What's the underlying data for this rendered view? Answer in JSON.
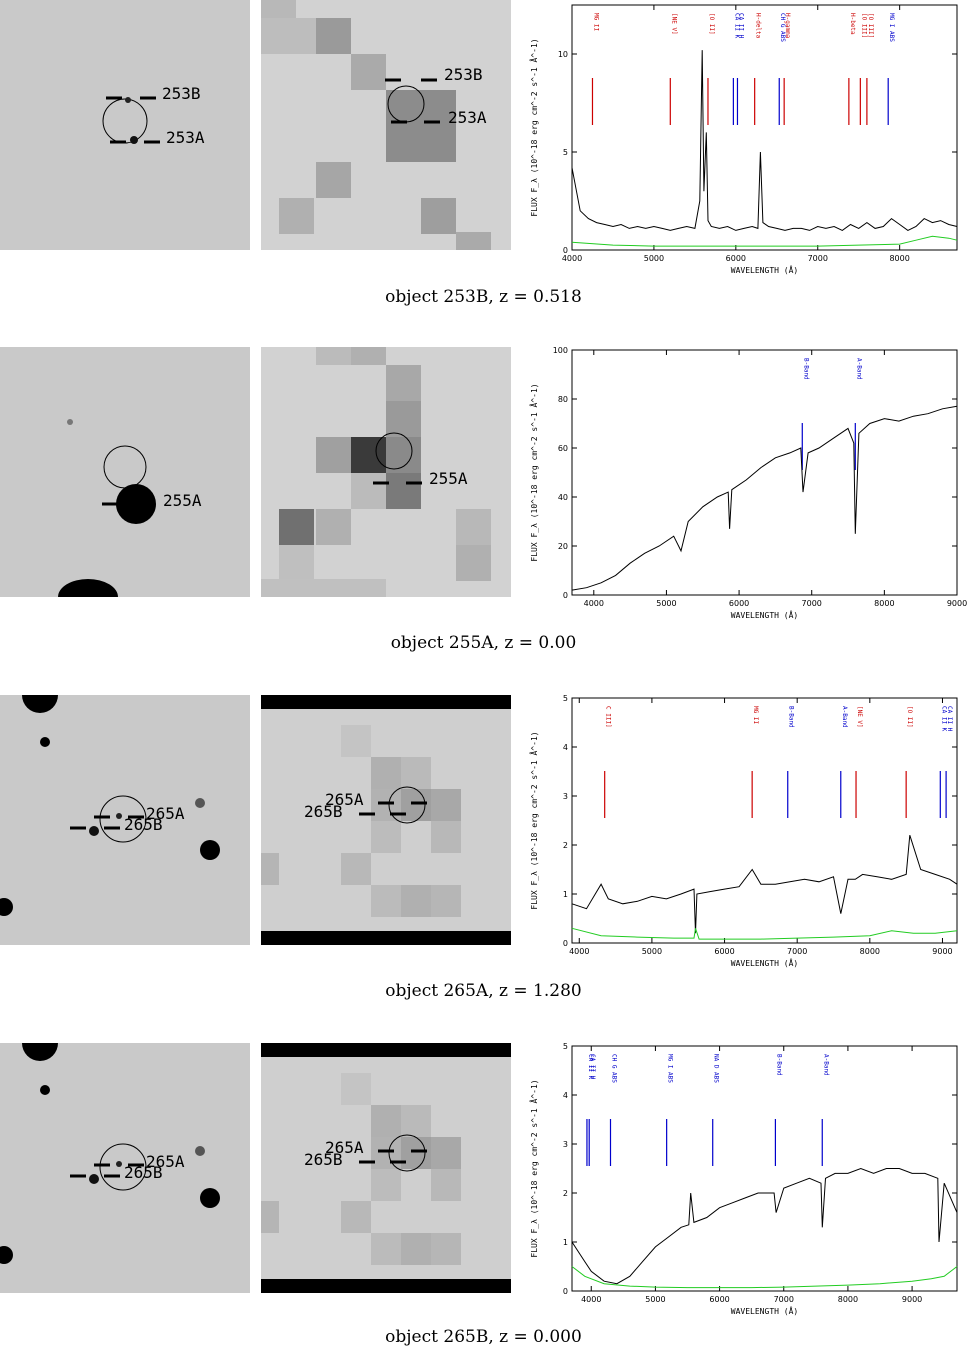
{
  "panels": [
    {
      "caption": "object 253B, z = 0.518",
      "optical_labels": [
        "253B",
        "253A"
      ],
      "xray_labels": [
        "253B",
        "253A"
      ],
      "chart_data": {
        "type": "line",
        "xlabel": "WAVELENGTH (Å)",
        "ylabel": "FLUX F_λ (10^-18 erg cm^-2 s^-1 Å^-1)",
        "xlim": [
          4000,
          8700
        ],
        "ylim": [
          0,
          12.5
        ],
        "xticks": [
          4000,
          5000,
          6000,
          7000,
          8000
        ],
        "yticks": [
          0,
          5,
          10
        ],
        "lines": [
          {
            "name": "MG II",
            "x": 4250,
            "color": "#cc0000"
          },
          {
            "name": "[NE V]",
            "x": 5200,
            "color": "#cc0000"
          },
          {
            "name": "[O II]",
            "x": 5660,
            "color": "#cc0000"
          },
          {
            "name": "CA II K",
            "x": 5970,
            "color": "#0000cc"
          },
          {
            "name": "CA II H",
            "x": 6020,
            "color": "#0000cc"
          },
          {
            "name": "H-delta",
            "x": 6230,
            "color": "#cc0000"
          },
          {
            "name": "CH G ABS",
            "x": 6530,
            "color": "#0000cc"
          },
          {
            "name": "H-gamma",
            "x": 6590,
            "color": "#cc0000"
          },
          {
            "name": "H-beta",
            "x": 7380,
            "color": "#cc0000"
          },
          {
            "name": "[O III]",
            "x": 7520,
            "color": "#cc0000"
          },
          {
            "name": "[O III]",
            "x": 7600,
            "color": "#cc0000"
          },
          {
            "name": "MG I ABS",
            "x": 7860,
            "color": "#0000cc"
          }
        ],
        "series": [
          {
            "name": "spectrum",
            "color": "#000000",
            "x": [
              4000,
              4100,
              4200,
              4300,
              4400,
              4500,
              4600,
              4700,
              4800,
              4900,
              5000,
              5100,
              5200,
              5300,
              5400,
              5500,
              5560,
              5590,
              5610,
              5640,
              5660,
              5700,
              5800,
              5900,
              6000,
              6100,
              6200,
              6270,
              6300,
              6330,
              6400,
              6500,
              6600,
              6700,
              6800,
              6900,
              7000,
              7100,
              7200,
              7300,
              7400,
              7500,
              7600,
              7700,
              7800,
              7900,
              8000,
              8100,
              8200,
              8300,
              8400,
              8500,
              8600,
              8700
            ],
            "y": [
              4.2,
              2.0,
              1.6,
              1.4,
              1.3,
              1.2,
              1.3,
              1.1,
              1.2,
              1.1,
              1.2,
              1.1,
              1.0,
              1.1,
              1.2,
              1.1,
              2.5,
              10.2,
              3.0,
              6.0,
              1.5,
              1.2,
              1.1,
              1.2,
              1.0,
              1.1,
              1.2,
              1.1,
              5.0,
              1.4,
              1.2,
              1.1,
              1.0,
              1.1,
              1.1,
              1.0,
              1.2,
              1.1,
              1.2,
              1.0,
              1.3,
              1.1,
              1.4,
              1.1,
              1.2,
              1.6,
              1.3,
              1.0,
              1.2,
              1.6,
              1.4,
              1.5,
              1.3,
              1.2
            ]
          },
          {
            "name": "noise",
            "color": "#22cc22",
            "x": [
              4000,
              4500,
              5000,
              5500,
              6000,
              6500,
              7000,
              7500,
              8000,
              8200,
              8400,
              8600,
              8700
            ],
            "y": [
              0.4,
              0.25,
              0.2,
              0.2,
              0.2,
              0.2,
              0.2,
              0.25,
              0.3,
              0.5,
              0.7,
              0.6,
              0.5
            ]
          }
        ]
      }
    },
    {
      "caption": "object 255A, z = 0.00",
      "optical_labels": [
        "255A"
      ],
      "xray_labels": [
        "255A"
      ],
      "chart_data": {
        "type": "line",
        "xlabel": "WAVELENGTH (Å)",
        "ylabel": "FLUX F_λ (10^-18 erg cm^-2 s^-1 Å^-1)",
        "xlim": [
          3700,
          9000
        ],
        "ylim": [
          0,
          100
        ],
        "xticks": [
          4000,
          5000,
          6000,
          7000,
          8000,
          9000
        ],
        "yticks": [
          0,
          20,
          40,
          60,
          80,
          100
        ],
        "lines": [
          {
            "name": "B-Band",
            "x": 6870,
            "color": "#0000cc"
          },
          {
            "name": "A-Band",
            "x": 7600,
            "color": "#0000cc"
          }
        ],
        "series": [
          {
            "name": "spectrum",
            "color": "#000000",
            "x": [
              3700,
              3900,
              4100,
              4300,
              4500,
              4700,
              4900,
              5100,
              5200,
              5300,
              5500,
              5700,
              5850,
              5870,
              5900,
              6100,
              6300,
              6500,
              6700,
              6850,
              6880,
              6950,
              7100,
              7300,
              7500,
              7580,
              7600,
              7650,
              7800,
              8000,
              8200,
              8400,
              8600,
              8800,
              9000
            ],
            "y": [
              2,
              3,
              5,
              8,
              13,
              17,
              20,
              24,
              18,
              30,
              36,
              40,
              42,
              27,
              43,
              47,
              52,
              56,
              58,
              60,
              42,
              58,
              60,
              64,
              68,
              62,
              25,
              66,
              70,
              72,
              71,
              73,
              74,
              76,
              77
            ]
          }
        ]
      }
    },
    {
      "caption": "object 265A, z = 1.280",
      "optical_labels": [
        "265A",
        "265B"
      ],
      "xray_labels": [
        "265A",
        "265B"
      ],
      "chart_data": {
        "type": "line",
        "xlabel": "WAVELENGTH (Å)",
        "ylabel": "FLUX F_λ (10^-18 erg cm^-2 s^-1 Å^-1)",
        "xlim": [
          3900,
          9200
        ],
        "ylim": [
          0,
          5
        ],
        "xticks": [
          4000,
          5000,
          6000,
          7000,
          8000,
          9000
        ],
        "yticks": [
          0,
          1,
          2,
          3,
          4,
          5
        ],
        "lines": [
          {
            "name": "C III]",
            "x": 4350,
            "color": "#cc0000"
          },
          {
            "name": "MG II",
            "x": 6380,
            "color": "#cc0000"
          },
          {
            "name": "B-Band",
            "x": 6870,
            "color": "#0000cc"
          },
          {
            "name": "A-Band",
            "x": 7600,
            "color": "#0000cc"
          },
          {
            "name": "[NE V]",
            "x": 7810,
            "color": "#cc0000"
          },
          {
            "name": "[O II]",
            "x": 8500,
            "color": "#cc0000"
          },
          {
            "name": "CA II K",
            "x": 8970,
            "color": "#0000cc"
          },
          {
            "name": "CA II H",
            "x": 9050,
            "color": "#0000cc"
          }
        ],
        "series": [
          {
            "name": "spectrum",
            "color": "#000000",
            "x": [
              3900,
              4100,
              4300,
              4400,
              4600,
              4800,
              5000,
              5200,
              5400,
              5580,
              5600,
              5620,
              5800,
              6000,
              6200,
              6380,
              6500,
              6700,
              6900,
              7100,
              7300,
              7500,
              7600,
              7700,
              7800,
              7900,
              8100,
              8300,
              8500,
              8550,
              8700,
              8900,
              9100,
              9200
            ],
            "y": [
              0.8,
              0.7,
              1.2,
              0.9,
              0.8,
              0.85,
              0.95,
              0.9,
              1.0,
              1.1,
              0.2,
              1.0,
              1.05,
              1.1,
              1.15,
              1.5,
              1.2,
              1.2,
              1.25,
              1.3,
              1.25,
              1.35,
              0.6,
              1.3,
              1.3,
              1.4,
              1.35,
              1.3,
              1.4,
              2.2,
              1.5,
              1.4,
              1.3,
              1.2
            ]
          },
          {
            "name": "noise",
            "color": "#22cc22",
            "x": [
              3900,
              4300,
              4800,
              5300,
              5580,
              5600,
              5650,
              6000,
              6500,
              7000,
              7500,
              8000,
              8300,
              8600,
              8900,
              9200
            ],
            "y": [
              0.3,
              0.15,
              0.12,
              0.1,
              0.1,
              0.3,
              0.08,
              0.08,
              0.08,
              0.1,
              0.12,
              0.15,
              0.25,
              0.2,
              0.2,
              0.25
            ]
          }
        ]
      }
    },
    {
      "caption": "object 265B, z = 0.000",
      "optical_labels": [
        "265A",
        "265B"
      ],
      "xray_labels": [
        "265A",
        "265B"
      ],
      "chart_data": {
        "type": "line",
        "xlabel": "WAVELENGTH (Å)",
        "ylabel": "FLUX F_λ (10^-18 erg cm^-2 s^-1 Å^-1)",
        "xlim": [
          3700,
          9700
        ],
        "ylim": [
          0,
          5
        ],
        "xticks": [
          4000,
          5000,
          6000,
          7000,
          8000,
          9000
        ],
        "yticks": [
          0,
          1,
          2,
          3,
          4,
          5
        ],
        "lines": [
          {
            "name": "CA II K",
            "x": 3933,
            "color": "#0000cc"
          },
          {
            "name": "CA II H",
            "x": 3968,
            "color": "#0000cc"
          },
          {
            "name": "CH G ABS",
            "x": 4300,
            "color": "#0000cc"
          },
          {
            "name": "MG I ABS",
            "x": 5175,
            "color": "#0000cc"
          },
          {
            "name": "NA D ABS",
            "x": 5893,
            "color": "#0000cc"
          },
          {
            "name": "B-Band",
            "x": 6870,
            "color": "#0000cc"
          },
          {
            "name": "A-Band",
            "x": 7600,
            "color": "#0000cc"
          }
        ],
        "series": [
          {
            "name": "spectrum",
            "color": "#000000",
            "x": [
              3700,
              3900,
              4000,
              4200,
              4400,
              4600,
              4800,
              5000,
              5200,
              5400,
              5520,
              5550,
              5600,
              5800,
              6000,
              6200,
              6400,
              6600,
              6850,
              6880,
              7000,
              7200,
              7400,
              7580,
              7600,
              7650,
              7800,
              8000,
              8200,
              8400,
              8600,
              8800,
              9000,
              9200,
              9400,
              9420,
              9500,
              9700
            ],
            "y": [
              1.0,
              0.6,
              0.4,
              0.2,
              0.15,
              0.3,
              0.6,
              0.9,
              1.1,
              1.3,
              1.35,
              2.0,
              1.4,
              1.5,
              1.7,
              1.8,
              1.9,
              2.0,
              2.0,
              1.6,
              2.1,
              2.2,
              2.3,
              2.2,
              1.3,
              2.3,
              2.4,
              2.4,
              2.5,
              2.4,
              2.5,
              2.5,
              2.4,
              2.4,
              2.3,
              1.0,
              2.2,
              1.6
            ]
          },
          {
            "name": "noise",
            "color": "#22cc22",
            "x": [
              3700,
              3900,
              4200,
              4600,
              5000,
              5500,
              6000,
              6500,
              7000,
              7500,
              8000,
              8500,
              9000,
              9300,
              9500,
              9700
            ],
            "y": [
              0.5,
              0.3,
              0.15,
              0.1,
              0.08,
              0.07,
              0.07,
              0.07,
              0.08,
              0.1,
              0.12,
              0.15,
              0.2,
              0.25,
              0.3,
              0.5
            ]
          }
        ]
      }
    }
  ]
}
